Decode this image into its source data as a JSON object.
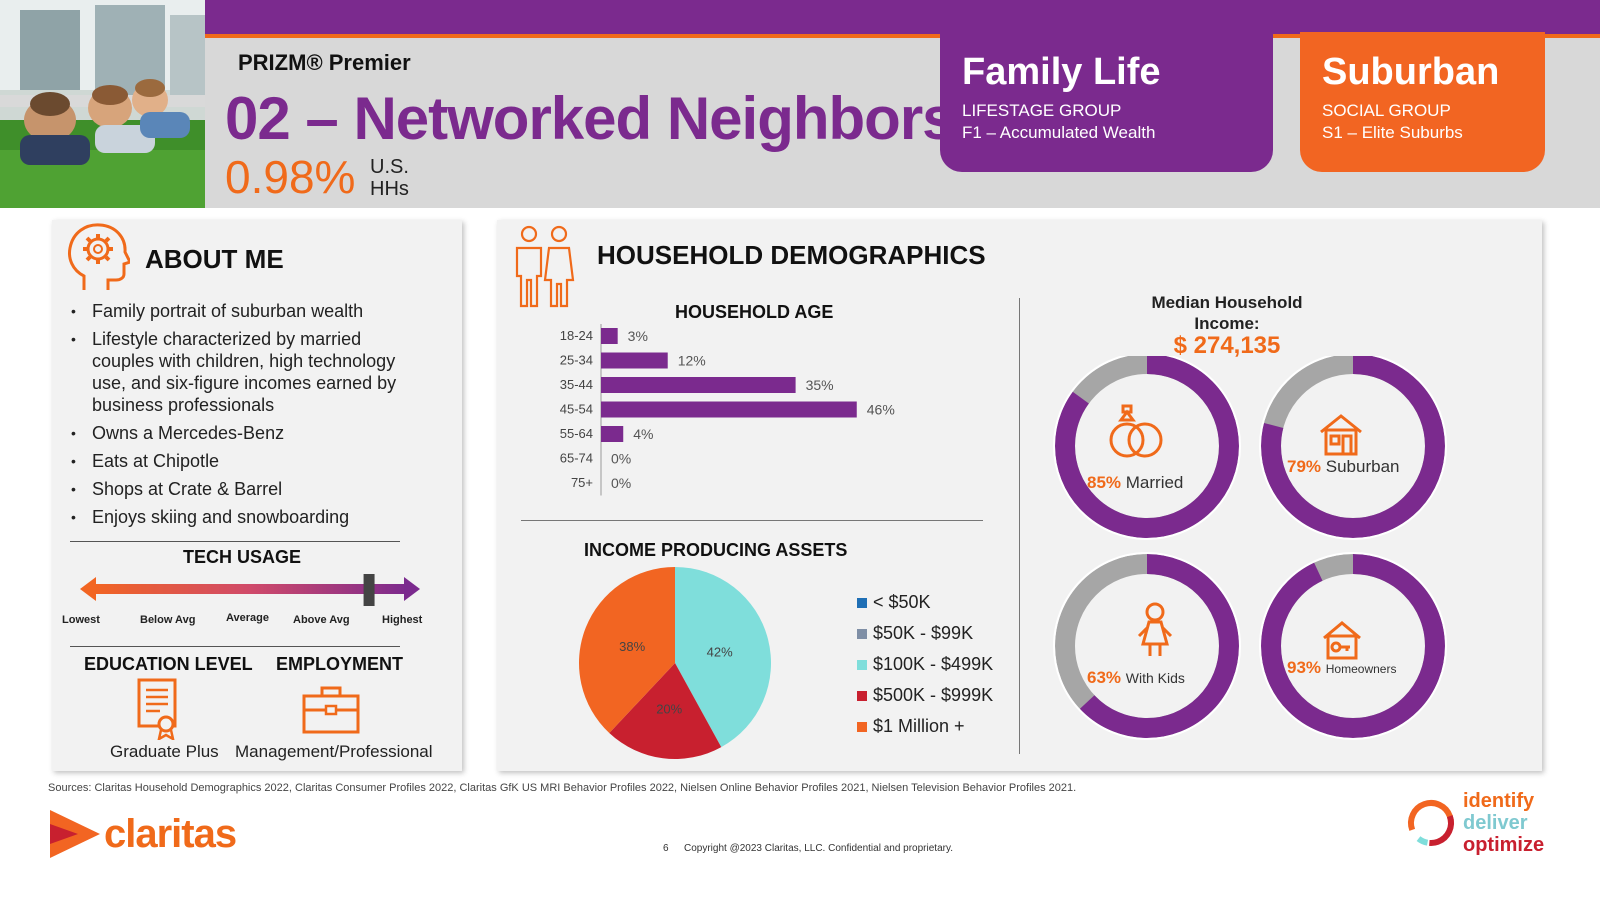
{
  "header": {
    "brand": "PRIZM® Premier",
    "segment_title": "02 – Networked Neighbors",
    "share_value": "0.98%",
    "share_label_line1": "U.S.",
    "share_label_line2": "HHs"
  },
  "lifestage": {
    "name": "Family Life",
    "group_label": "LIFESTAGE GROUP",
    "group_value": "F1 – Accumulated Wealth"
  },
  "social": {
    "name": "Suburban",
    "group_label": "SOCIAL GROUP",
    "group_value": "S1 – Elite Suburbs"
  },
  "about": {
    "title": "ABOUT ME",
    "bullets": [
      "Family portrait of suburban wealth",
      "Lifestyle characterized by married couples with children, high technology use, and six-figure incomes earned by business professionals",
      "Owns a Mercedes-Benz",
      "Eats at Chipotle",
      "Shops at Crate & Barrel",
      "Enjoys skiing and snowboarding"
    ],
    "tech_title": "TECH USAGE",
    "tech_scale": [
      "Lowest",
      "Below Avg",
      "Average",
      "Above Avg",
      "Highest"
    ],
    "tech_level": 0.88,
    "education_title": "EDUCATION LEVEL",
    "education_value": "Graduate Plus",
    "employment_title": "EMPLOYMENT",
    "employment_value": "Management/Professional"
  },
  "demographics": {
    "title": "HOUSEHOLD DEMOGRAPHICS",
    "household_age": {
      "title": "HOUSEHOLD AGE",
      "categories": [
        "18-24",
        "25-34",
        "35-44",
        "45-54",
        "55-64",
        "65-74",
        "75+"
      ],
      "values": [
        3,
        12,
        35,
        46,
        4,
        0,
        0
      ],
      "labels": [
        "3%",
        "12%",
        "35%",
        "46%",
        "4%",
        "0%",
        "0%"
      ],
      "color": "#7b2a8e"
    },
    "income_assets": {
      "title": "INCOME PRODUCING ASSETS",
      "legend": [
        "< $50K",
        "$50K - $99K",
        "$100K - $499K",
        "$500K - $999K",
        "$1 Million +"
      ],
      "colors": [
        "#1f6fb5",
        "#7f8fa6",
        "#7fdedb",
        "#c8202f",
        "#f26522"
      ],
      "values": [
        0,
        0,
        42,
        20,
        38
      ],
      "labels": [
        "",
        "",
        "42%",
        "20%",
        "38%"
      ]
    },
    "income": {
      "title_line1": "Median Household",
      "title_line2": "Income:",
      "value": "$ 274,135"
    },
    "donuts": [
      {
        "pct": "85%",
        "label": "Married",
        "value": 85,
        "icon": "rings-icon"
      },
      {
        "pct": "79%",
        "label": "Suburban",
        "value": 79,
        "icon": "house-icon"
      },
      {
        "pct": "63%",
        "label": "With Kids",
        "value": 63,
        "icon": "child-icon"
      },
      {
        "pct": "93%",
        "label": "Homeowners",
        "value": 93,
        "icon": "key-house-icon"
      }
    ],
    "donut_color": "#7b2a8e",
    "donut_rest_color": "#a6a6a6"
  },
  "chart_data": [
    {
      "type": "bar",
      "title": "HOUSEHOLD AGE",
      "categories": [
        "18-24",
        "25-34",
        "35-44",
        "45-54",
        "55-64",
        "65-74",
        "75+"
      ],
      "values": [
        3,
        12,
        35,
        46,
        4,
        0,
        0
      ]
    },
    {
      "type": "pie",
      "title": "INCOME PRODUCING ASSETS",
      "categories": [
        "< $50K",
        "$50K - $99K",
        "$100K - $499K",
        "$500K - $999K",
        "$1 Million +"
      ],
      "values": [
        0,
        0,
        42,
        20,
        38
      ]
    }
  ],
  "footer": {
    "sources": "Sources: Claritas Household Demographics 2022, Claritas Consumer Profiles 2022, Claritas GfK US MRI Behavior Profiles 2022, Nielsen Online Behavior Profiles 2021, Nielsen Television Behavior Profiles 2021.",
    "page_number": "6",
    "copyright": "Copyright @2023 Claritas, LLC. Confidential and proprietary.",
    "logo_text": "claritas",
    "tagline": [
      "identify",
      "deliver",
      "optimize"
    ]
  }
}
